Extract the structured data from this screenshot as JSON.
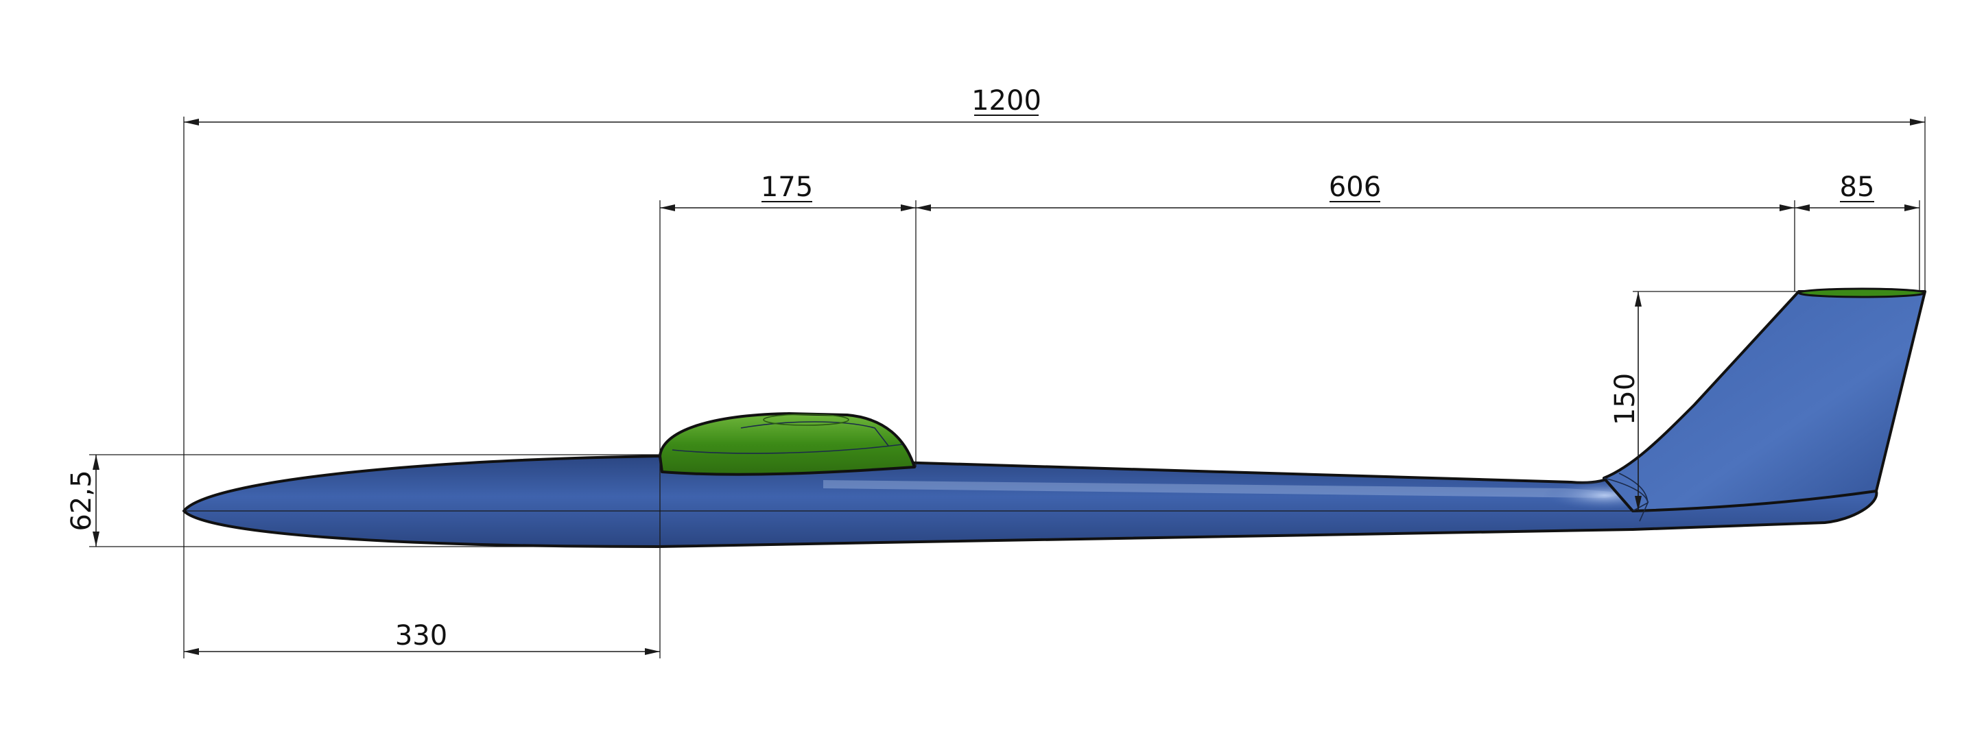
{
  "colors": {
    "fuselage": "#3f63ad",
    "fuselage_highlight": "#b9cdf2",
    "fuselage_shadow": "#2b4682",
    "canopy": "#3c8a17",
    "canopy_highlight": "#6fb63b",
    "outline": "#111111",
    "dimension": "#1a1a1a"
  },
  "dimensions": {
    "overall_length": "1200",
    "canopy_length": "175",
    "canopy_to_fin": "606",
    "fin_tip_chord": "85",
    "fin_height": "150",
    "fuselage_height": "62,5",
    "nose_to_canopy": "330"
  }
}
